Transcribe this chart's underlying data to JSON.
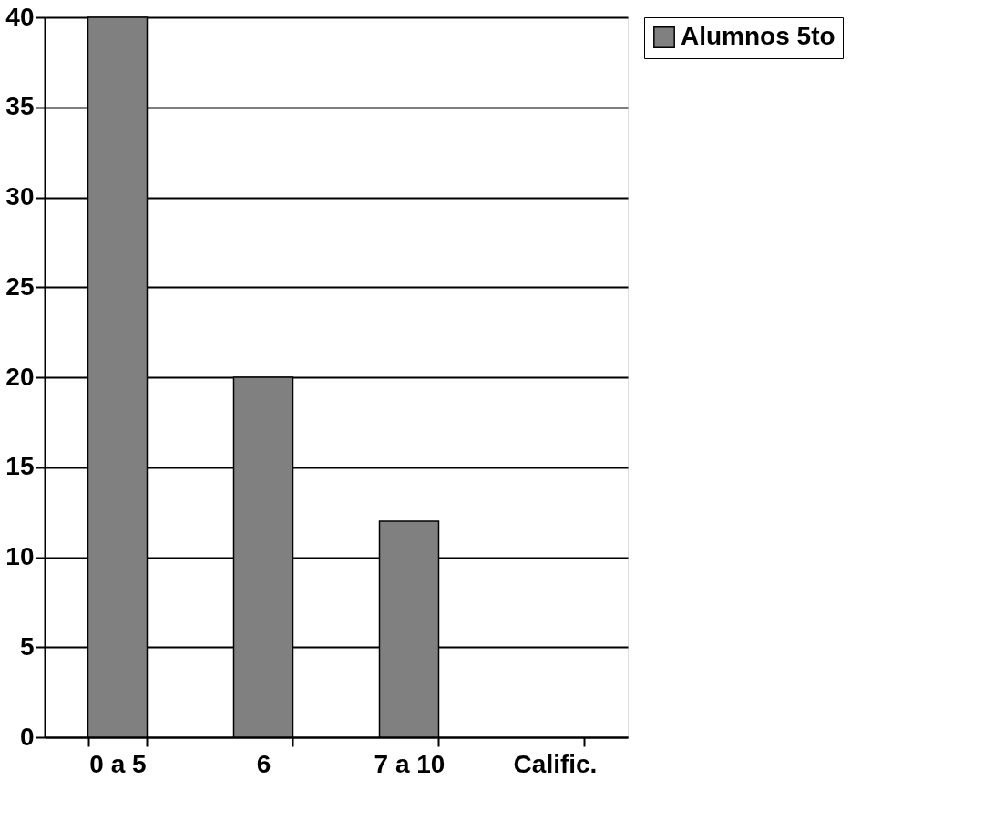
{
  "chart_data": {
    "type": "bar",
    "categories": [
      "0 a 5",
      "6",
      "7 a 10",
      "Calific."
    ],
    "series": [
      {
        "name": "Alumnos 5to",
        "color": "#808080",
        "values": [
          40,
          20,
          12,
          null
        ]
      }
    ],
    "ylim": [
      0,
      40
    ],
    "yticks": [
      0,
      5,
      10,
      15,
      20,
      25,
      30,
      35,
      40
    ],
    "grid": "y",
    "legend": "right"
  }
}
